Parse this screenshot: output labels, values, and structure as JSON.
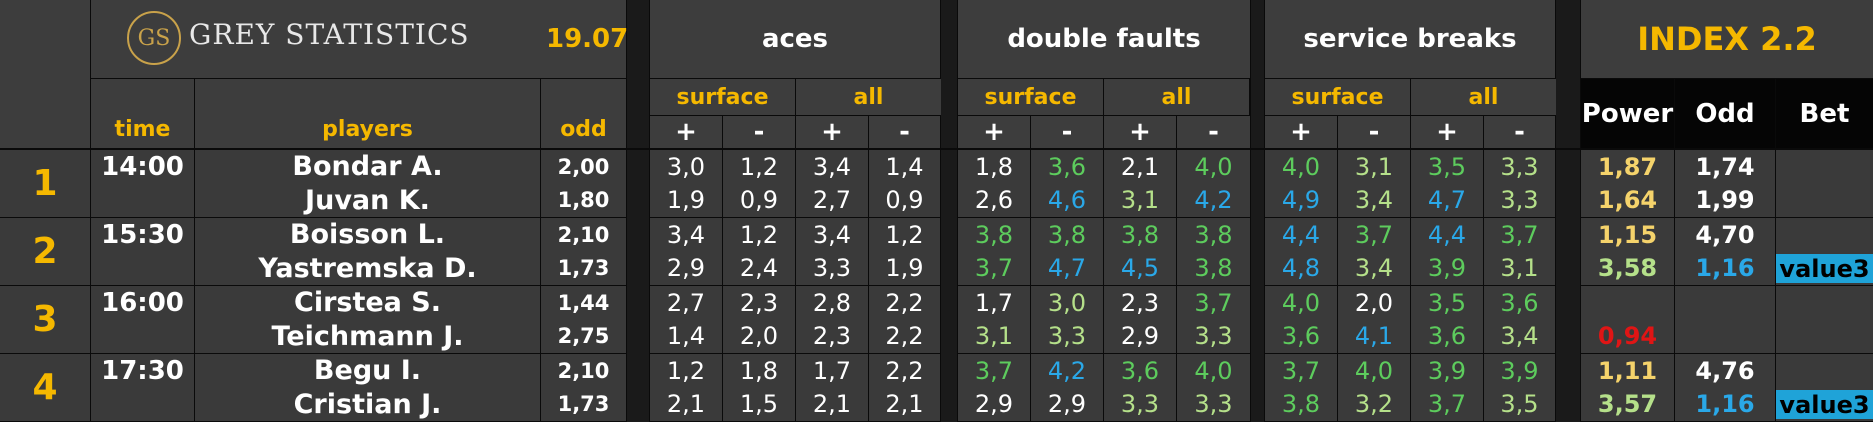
{
  "header": {
    "logo_mark": "GS",
    "logo_text": "GREY STATISTICS",
    "date": "19.07",
    "groups": {
      "aces": "aces",
      "double_faults": "double faults",
      "service_breaks": "service breaks"
    },
    "index_title": "INDEX 2.2",
    "sub": {
      "surface": "surface",
      "all": "all",
      "plus": "+",
      "minus": "-"
    },
    "cols": {
      "time": "time",
      "players": "players",
      "odd": "odd",
      "power": "Power",
      "odd2": "Odd",
      "bet": "Bet"
    }
  },
  "colors": {
    "white": "#ffffff",
    "green": "#5dcc5d",
    "lightgreen": "#b5e08a",
    "blue": "#2aa8e8",
    "yellow": "#f5d36b",
    "red": "#e01515",
    "accent": "#f5b800"
  },
  "matches": [
    {
      "num": "1",
      "time": "14:00",
      "players": [
        {
          "name": "Bondar A.",
          "odd": "2,00",
          "stats": [
            [
              "3,0",
              "white"
            ],
            [
              "1,2",
              "white"
            ],
            [
              "3,4",
              "white"
            ],
            [
              "1,4",
              "white"
            ],
            [
              "1,8",
              "white"
            ],
            [
              "3,6",
              "green"
            ],
            [
              "2,1",
              "white"
            ],
            [
              "4,0",
              "green"
            ],
            [
              "4,0",
              "green"
            ],
            [
              "3,1",
              "lightgreen"
            ],
            [
              "3,5",
              "green"
            ],
            [
              "3,3",
              "lightgreen"
            ]
          ],
          "power": [
            "1,87",
            "yellow"
          ],
          "odd2": [
            "1,74",
            "white"
          ],
          "bet": ""
        },
        {
          "name": "Juvan K.",
          "odd": "1,80",
          "stats": [
            [
              "1,9",
              "white"
            ],
            [
              "0,9",
              "white"
            ],
            [
              "2,7",
              "white"
            ],
            [
              "0,9",
              "white"
            ],
            [
              "2,6",
              "white"
            ],
            [
              "4,6",
              "blue"
            ],
            [
              "3,1",
              "lightgreen"
            ],
            [
              "4,2",
              "blue"
            ],
            [
              "4,9",
              "blue"
            ],
            [
              "3,4",
              "lightgreen"
            ],
            [
              "4,7",
              "blue"
            ],
            [
              "3,3",
              "lightgreen"
            ]
          ],
          "power": [
            "1,64",
            "yellow"
          ],
          "odd2": [
            "1,99",
            "white"
          ],
          "bet": ""
        }
      ]
    },
    {
      "num": "2",
      "time": "15:30",
      "players": [
        {
          "name": "Boisson L.",
          "odd": "2,10",
          "stats": [
            [
              "3,4",
              "white"
            ],
            [
              "1,2",
              "white"
            ],
            [
              "3,4",
              "white"
            ],
            [
              "1,2",
              "white"
            ],
            [
              "3,8",
              "green"
            ],
            [
              "3,8",
              "green"
            ],
            [
              "3,8",
              "green"
            ],
            [
              "3,8",
              "green"
            ],
            [
              "4,4",
              "blue"
            ],
            [
              "3,7",
              "green"
            ],
            [
              "4,4",
              "blue"
            ],
            [
              "3,7",
              "green"
            ]
          ],
          "power": [
            "1,15",
            "yellow"
          ],
          "odd2": [
            "4,70",
            "white"
          ],
          "bet": ""
        },
        {
          "name": "Yastremska D.",
          "odd": "1,73",
          "stats": [
            [
              "2,9",
              "white"
            ],
            [
              "2,4",
              "white"
            ],
            [
              "3,3",
              "white"
            ],
            [
              "1,9",
              "white"
            ],
            [
              "3,7",
              "green"
            ],
            [
              "4,7",
              "blue"
            ],
            [
              "4,5",
              "blue"
            ],
            [
              "3,8",
              "green"
            ],
            [
              "4,8",
              "blue"
            ],
            [
              "3,4",
              "lightgreen"
            ],
            [
              "3,9",
              "green"
            ],
            [
              "3,1",
              "lightgreen"
            ]
          ],
          "power": [
            "3,58",
            "lightgreen"
          ],
          "odd2": [
            "1,16",
            "blue"
          ],
          "bet": "value3"
        }
      ]
    },
    {
      "num": "3",
      "time": "16:00",
      "players": [
        {
          "name": "Cirstea S.",
          "odd": "1,44",
          "stats": [
            [
              "2,7",
              "white"
            ],
            [
              "2,3",
              "white"
            ],
            [
              "2,8",
              "white"
            ],
            [
              "2,2",
              "white"
            ],
            [
              "1,7",
              "white"
            ],
            [
              "3,0",
              "lightgreen"
            ],
            [
              "2,3",
              "white"
            ],
            [
              "3,7",
              "green"
            ],
            [
              "4,0",
              "green"
            ],
            [
              "2,0",
              "white"
            ],
            [
              "3,5",
              "green"
            ],
            [
              "3,6",
              "green"
            ]
          ],
          "power": [
            "",
            "white"
          ],
          "odd2": [
            "",
            "white"
          ],
          "bet": ""
        },
        {
          "name": "Teichmann J.",
          "odd": "2,75",
          "stats": [
            [
              "1,4",
              "white"
            ],
            [
              "2,0",
              "white"
            ],
            [
              "2,3",
              "white"
            ],
            [
              "2,2",
              "white"
            ],
            [
              "3,1",
              "lightgreen"
            ],
            [
              "3,3",
              "lightgreen"
            ],
            [
              "2,9",
              "white"
            ],
            [
              "3,3",
              "lightgreen"
            ],
            [
              "3,6",
              "green"
            ],
            [
              "4,1",
              "blue"
            ],
            [
              "3,6",
              "green"
            ],
            [
              "3,4",
              "lightgreen"
            ]
          ],
          "power": [
            "0,94",
            "red"
          ],
          "odd2": [
            "",
            "white"
          ],
          "bet": ""
        }
      ]
    },
    {
      "num": "4",
      "time": "17:30",
      "players": [
        {
          "name": "Begu I.",
          "odd": "2,10",
          "stats": [
            [
              "1,2",
              "white"
            ],
            [
              "1,8",
              "white"
            ],
            [
              "1,7",
              "white"
            ],
            [
              "2,2",
              "white"
            ],
            [
              "3,7",
              "green"
            ],
            [
              "4,2",
              "blue"
            ],
            [
              "3,6",
              "green"
            ],
            [
              "4,0",
              "green"
            ],
            [
              "3,7",
              "green"
            ],
            [
              "4,0",
              "green"
            ],
            [
              "3,9",
              "green"
            ],
            [
              "3,9",
              "green"
            ]
          ],
          "power": [
            "1,11",
            "yellow"
          ],
          "odd2": [
            "4,76",
            "white"
          ],
          "bet": ""
        },
        {
          "name": "Cristian J.",
          "odd": "1,73",
          "stats": [
            [
              "2,1",
              "white"
            ],
            [
              "1,5",
              "white"
            ],
            [
              "2,1",
              "white"
            ],
            [
              "2,1",
              "white"
            ],
            [
              "2,9",
              "white"
            ],
            [
              "2,9",
              "white"
            ],
            [
              "3,3",
              "lightgreen"
            ],
            [
              "3,3",
              "lightgreen"
            ],
            [
              "3,8",
              "green"
            ],
            [
              "3,2",
              "lightgreen"
            ],
            [
              "3,7",
              "green"
            ],
            [
              "3,5",
              "lightgreen"
            ]
          ],
          "power": [
            "3,57",
            "lightgreen"
          ],
          "odd2": [
            "1,16",
            "blue"
          ],
          "bet": "value3"
        }
      ]
    }
  ]
}
